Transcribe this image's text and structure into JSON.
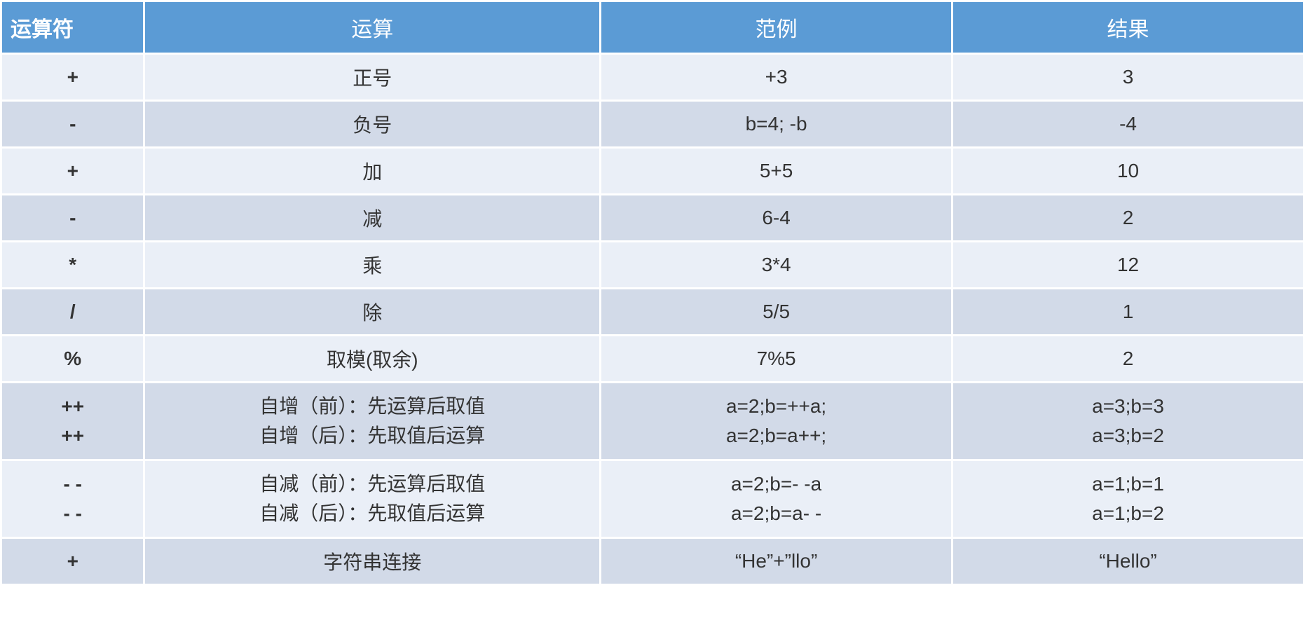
{
  "table": {
    "type": "table",
    "header_bg": "#5b9bd5",
    "header_fg": "#ffffff",
    "row_light_bg": "#eaeff7",
    "row_dark_bg": "#d2dae8",
    "border_color": "#ffffff",
    "header_fontsize": 30,
    "cell_fontsize": 28,
    "columns": [
      "运算符",
      "运算",
      "范例",
      "结果"
    ],
    "column_widths_pct": [
      11,
      35,
      27,
      27
    ],
    "rows": [
      {
        "op": "+",
        "desc": "正号",
        "example": "+3",
        "result": "3",
        "shade": "light"
      },
      {
        "op": "-",
        "desc": "负号",
        "example": "b=4; -b",
        "result": "-4",
        "shade": "dark"
      },
      {
        "op": "+",
        "desc": "加",
        "example": "5+5",
        "result": "10",
        "shade": "light"
      },
      {
        "op": "-",
        "desc": "减",
        "example": "6-4",
        "result": "2",
        "shade": "dark"
      },
      {
        "op": "*",
        "desc": "乘",
        "example": "3*4",
        "result": "12",
        "shade": "light"
      },
      {
        "op": "/",
        "desc": "除",
        "example": "5/5",
        "result": "1",
        "shade": "dark"
      },
      {
        "op": "%",
        "desc": "取模(取余)",
        "example": "7%5",
        "result": "2",
        "shade": "light"
      },
      {
        "op": "++\n++",
        "desc": "自增（前）：先运算后取值\n自增（后）：先取值后运算",
        "example": "a=2;b=++a;\na=2;b=a++;",
        "result": "a=3;b=3\na=3;b=2",
        "shade": "dark"
      },
      {
        "op": "- -\n- -",
        "desc": "自减（前）：先运算后取值\n自减（后）：先取值后运算",
        "example": "a=2;b=- -a\na=2;b=a- -",
        "result": "a=1;b=1\na=1;b=2",
        "shade": "light"
      },
      {
        "op": "+",
        "desc": "字符串连接",
        "example": "“He”+”llo”",
        "result": "“Hello”",
        "shade": "dark"
      }
    ]
  }
}
